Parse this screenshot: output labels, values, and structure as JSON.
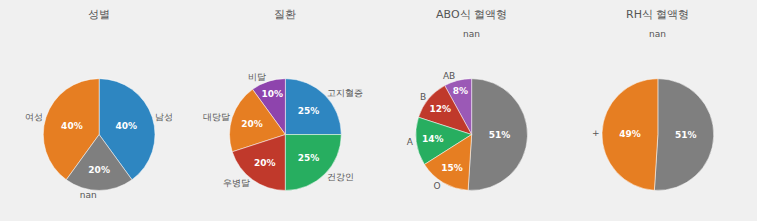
{
  "chart_data": [
    {
      "type": "pie",
      "title": "성별",
      "categories": [
        "남성",
        "여성",
        "nan"
      ],
      "values": [
        40,
        40,
        20
      ],
      "value_labels": [
        "40%",
        "40%",
        "20%"
      ],
      "colors": [
        "#2e86c1",
        "#e67e22",
        "#7f7f7f"
      ],
      "data_labels": true
    },
    {
      "type": "pie",
      "title": "질환",
      "categories": [
        "고지혈증",
        "비달",
        "대당달",
        "우병달",
        "건강인"
      ],
      "values": [
        25,
        10,
        20,
        20,
        25
      ],
      "value_labels": [
        "25%",
        "10%",
        "20%",
        "20%",
        "25%"
      ],
      "colors": [
        "#2e86c1",
        "#8e44ad",
        "#e67e22",
        "#c0392b",
        "#27ae60"
      ],
      "data_labels": true
    },
    {
      "type": "pie",
      "title": "ABO식 혈액형",
      "subtitle": "nan",
      "categories": [
        null,
        "AB",
        "B",
        "A",
        "O"
      ],
      "values": [
        51,
        8,
        12,
        14,
        15
      ],
      "value_labels": [
        "51%",
        "8%",
        "12%",
        "14%",
        "15%"
      ],
      "colors": [
        "#7f7f7f",
        "#9b59b6",
        "#c0392b",
        "#27ae60",
        "#e67e22"
      ],
      "data_labels": true
    },
    {
      "type": "pie",
      "title": "RH식 혈액형",
      "subtitle": "nan",
      "categories": [
        null,
        "+"
      ],
      "values": [
        51,
        49
      ],
      "value_labels": [
        "51%",
        "49%"
      ],
      "colors": [
        "#7f7f7f",
        "#e67e22"
      ],
      "data_labels": true
    }
  ]
}
